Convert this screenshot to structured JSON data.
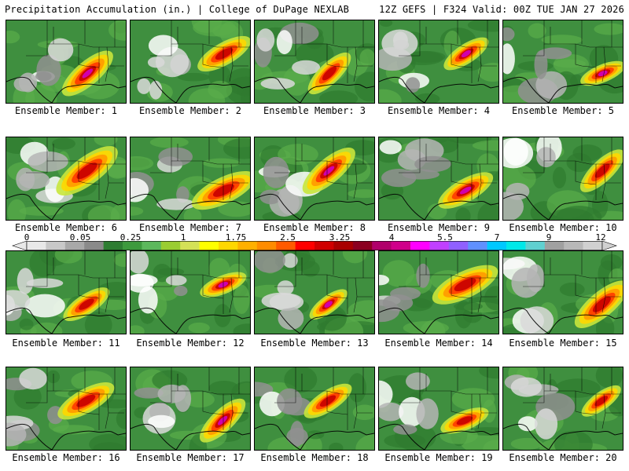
{
  "header": {
    "left": "Precipitation Accumulation (in.) | College of DuPage NEXLAB",
    "right": "12Z GEFS | F324 Valid: 00Z TUE JAN 27 2026"
  },
  "panels": [
    {
      "member": 1,
      "caption": "Ensemble Member: 1"
    },
    {
      "member": 2,
      "caption": "Ensemble Member: 2"
    },
    {
      "member": 3,
      "caption": "Ensemble Member: 3"
    },
    {
      "member": 4,
      "caption": "Ensemble Member: 4"
    },
    {
      "member": 5,
      "caption": "Ensemble Member: 5"
    },
    {
      "member": 6,
      "caption": "Ensemble Member: 6"
    },
    {
      "member": 7,
      "caption": "Ensemble Member: 7"
    },
    {
      "member": 8,
      "caption": "Ensemble Member: 8"
    },
    {
      "member": 9,
      "caption": "Ensemble Member: 9"
    },
    {
      "member": 10,
      "caption": "Ensemble Member: 10"
    },
    {
      "member": 11,
      "caption": "Ensemble Member: 11"
    },
    {
      "member": 12,
      "caption": "Ensemble Member: 12"
    },
    {
      "member": 13,
      "caption": "Ensemble Member: 13"
    },
    {
      "member": 14,
      "caption": "Ensemble Member: 14"
    },
    {
      "member": 15,
      "caption": "Ensemble Member: 15"
    },
    {
      "member": 16,
      "caption": "Ensemble Member: 16"
    },
    {
      "member": 17,
      "caption": "Ensemble Member: 17"
    },
    {
      "member": 18,
      "caption": "Ensemble Member: 18"
    },
    {
      "member": 19,
      "caption": "Ensemble Member: 19"
    },
    {
      "member": 20,
      "caption": "Ensemble Member: 20"
    }
  ],
  "colorbar": {
    "labels": [
      "0",
      "0.05",
      "0.25",
      "1",
      "1.75",
      "2.5",
      "3.25",
      "4",
      "5.5",
      "7",
      "9",
      "12"
    ],
    "colors": [
      "#e8e8e8",
      "#c8c8c8",
      "#a8a8a8",
      "#8a8a8a",
      "#2e7d32",
      "#3d9a3d",
      "#5cb85c",
      "#9acd32",
      "#d4e157",
      "#ffff00",
      "#ffd700",
      "#ffb000",
      "#ff8c00",
      "#ff5a00",
      "#ff0000",
      "#d00000",
      "#a80000",
      "#8b0020",
      "#b0006a",
      "#d0008a",
      "#ff00ff",
      "#c040ff",
      "#9060ff",
      "#6090ff",
      "#00c8ff",
      "#00e8e8",
      "#60d0d0",
      "#a0a0a0",
      "#b8b8b8",
      "#d0d0d0"
    ]
  }
}
